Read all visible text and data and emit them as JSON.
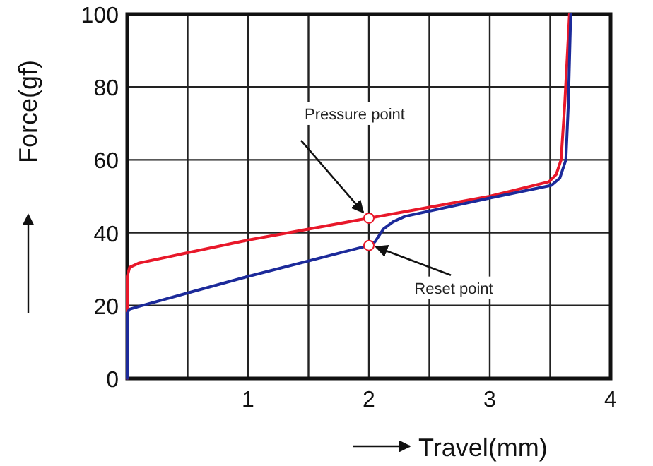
{
  "chart_data": {
    "type": "line",
    "xlabel": "Travel(mm)",
    "ylabel": "Force(gf)",
    "xlim": [
      0,
      4
    ],
    "ylim": [
      0,
      100
    ],
    "xticks": [
      {
        "value": 0.5,
        "label": null
      },
      1,
      {
        "value": 1.5,
        "label": null
      },
      2,
      {
        "value": 2.5,
        "label": null
      },
      3,
      {
        "value": 3.5,
        "label": null
      },
      4
    ],
    "yticks": [
      0,
      20,
      40,
      60,
      80,
      100
    ],
    "grid": true,
    "marker": "none",
    "line_style": "solid",
    "series": [
      {
        "color": "#e8182a",
        "x": [
          0,
          0,
          0.02,
          0.1,
          1,
          2,
          3,
          3.49,
          3.55,
          3.59,
          3.62,
          3.66
        ],
        "values": [
          0,
          28,
          30.5,
          31.7,
          38,
          44,
          50,
          54,
          56,
          60,
          75,
          100
        ]
      },
      {
        "color": "#1c2a9a",
        "x": [
          0,
          0,
          0.02,
          0.1,
          1,
          2,
          2.05,
          2.12,
          2.2,
          2.3,
          3,
          3.51,
          3.58,
          3.63,
          3.65,
          3.67
        ],
        "values": [
          0,
          18,
          19,
          19.8,
          28,
          36.5,
          37.5,
          41,
          43,
          44.5,
          49.5,
          53,
          55,
          60,
          75,
          100
        ]
      }
    ],
    "annotations": [
      {
        "text": "Pressure point",
        "x": 2,
        "y": 44
      },
      {
        "text": "Reset point",
        "x": 2,
        "y": 36.5
      }
    ]
  }
}
